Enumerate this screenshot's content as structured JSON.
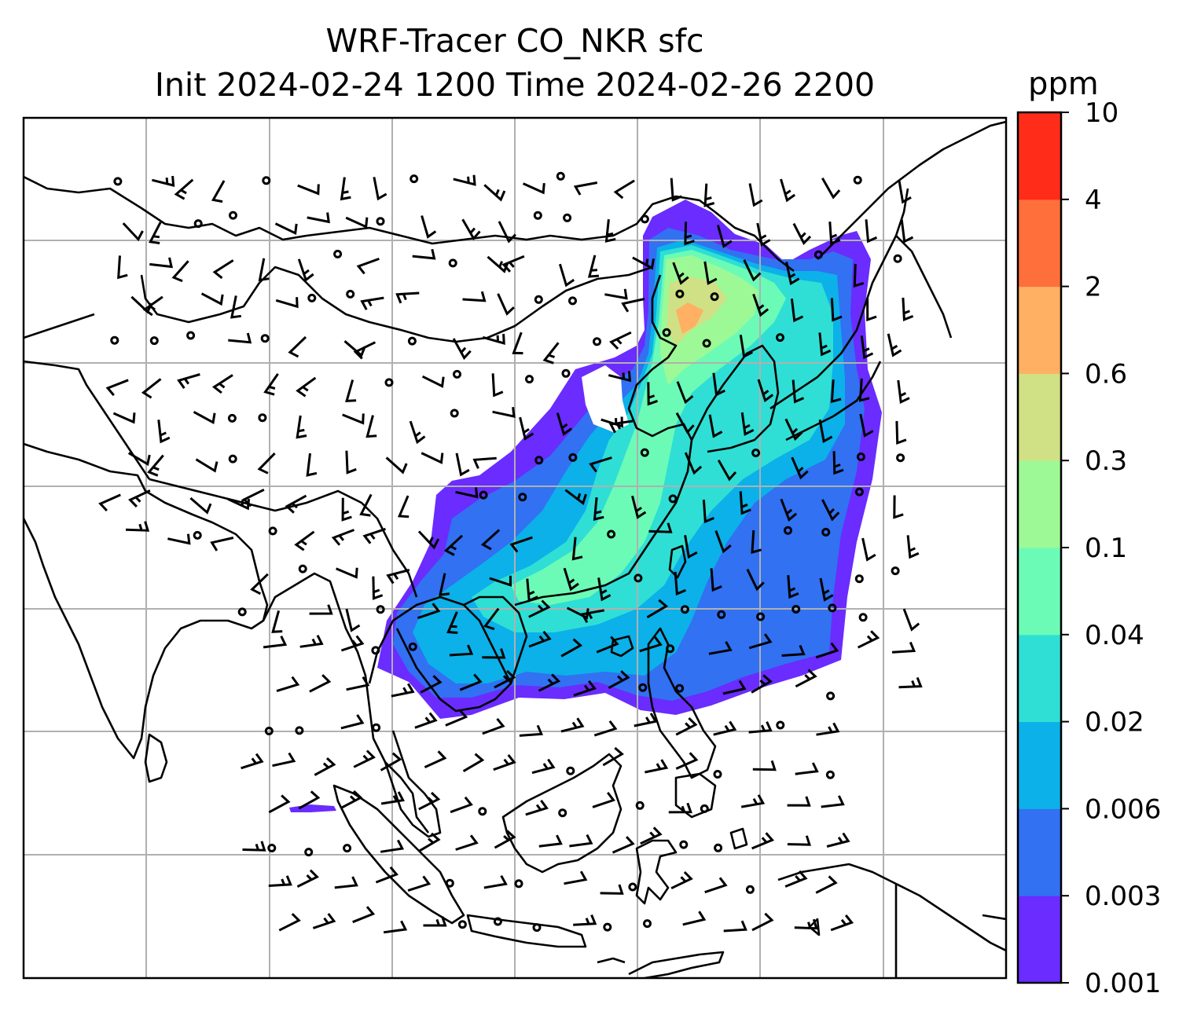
{
  "title": {
    "line1": "WRF-Tracer CO_NKR sfc",
    "line2": "Init 2024-02-24 1200 Time 2024-02-26 2200"
  },
  "colorbar": {
    "unit": "ppm",
    "levels": [
      "0.001",
      "0.003",
      "0.006",
      "0.02",
      "0.04",
      "0.1",
      "0.3",
      "0.6",
      "2",
      "4",
      "10"
    ],
    "colors": [
      "#6a2cff",
      "#3171f2",
      "#0bb1e8",
      "#2fdfd5",
      "#6cfbb6",
      "#9df996",
      "#cfe085",
      "#ffb062",
      "#ff6f3b",
      "#ff2c19"
    ]
  },
  "map": {
    "projection_extent_lon": [
      60,
      160
    ],
    "projection_extent_lat": [
      -25,
      45
    ],
    "gridlines": true
  },
  "legend_colors": {
    "coast": "#000000",
    "grid": "#b0b0b0"
  }
}
